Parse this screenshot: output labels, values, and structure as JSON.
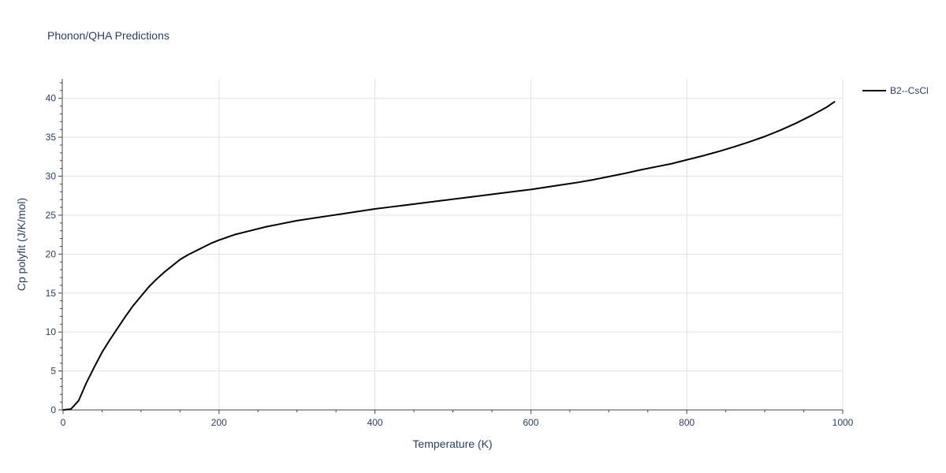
{
  "chart_data": {
    "type": "line",
    "title": "Phonon/QHA Predictions",
    "xlabel": "Temperature (K)",
    "ylabel": "Cp polyfit (J/K/mol)",
    "xlim": [
      0,
      1000
    ],
    "ylim": [
      0,
      42.5
    ],
    "xticks": [
      0,
      200,
      400,
      600,
      800,
      1000
    ],
    "yticks": [
      0,
      5,
      10,
      15,
      20,
      25,
      30,
      35,
      40
    ],
    "grid": true,
    "legend_position": "top-right",
    "series": [
      {
        "name": "B2--CsCl",
        "color": "#000000",
        "x": [
          0,
          10,
          20,
          30,
          40,
          50,
          60,
          70,
          80,
          90,
          100,
          110,
          120,
          130,
          140,
          150,
          160,
          170,
          180,
          190,
          200,
          220,
          240,
          260,
          280,
          300,
          320,
          340,
          360,
          380,
          400,
          420,
          440,
          460,
          480,
          500,
          520,
          540,
          560,
          580,
          600,
          620,
          640,
          660,
          680,
          700,
          720,
          740,
          760,
          780,
          800,
          820,
          840,
          860,
          880,
          900,
          920,
          940,
          960,
          980,
          990
        ],
        "y": [
          0,
          0.1,
          1.2,
          3.5,
          5.5,
          7.4,
          9.0,
          10.5,
          12.0,
          13.4,
          14.6,
          15.8,
          16.8,
          17.7,
          18.5,
          19.3,
          19.9,
          20.4,
          20.9,
          21.4,
          21.8,
          22.5,
          23.0,
          23.5,
          23.9,
          24.3,
          24.6,
          24.9,
          25.2,
          25.5,
          25.8,
          26.05,
          26.3,
          26.55,
          26.8,
          27.05,
          27.3,
          27.55,
          27.8,
          28.05,
          28.3,
          28.6,
          28.9,
          29.2,
          29.55,
          29.95,
          30.35,
          30.8,
          31.2,
          31.6,
          32.1,
          32.6,
          33.15,
          33.75,
          34.4,
          35.1,
          35.9,
          36.8,
          37.8,
          38.9,
          39.6
        ]
      }
    ]
  }
}
